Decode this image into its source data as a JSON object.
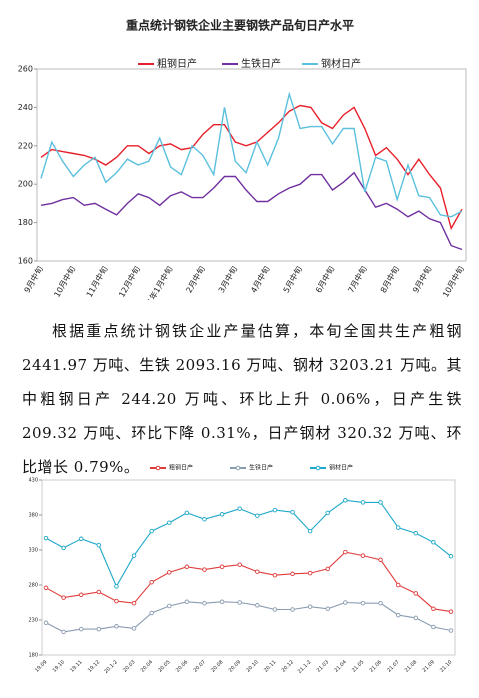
{
  "chart_data": [
    {
      "type": "line",
      "title": "重点统计钢铁企业主要钢铁产品旬日产水平",
      "categories": [
        "9月中旬",
        null,
        null,
        "10月中旬",
        null,
        null,
        "11月中旬",
        null,
        null,
        "12月中旬",
        null,
        null,
        "2021年1月中旬",
        null,
        null,
        "2月中旬",
        null,
        null,
        "3月中旬",
        null,
        null,
        "4月中旬",
        null,
        null,
        "5月中旬",
        null,
        null,
        "6月中旬",
        null,
        null,
        "7月中旬",
        null,
        null,
        "8月中旬",
        null,
        null,
        "9月中旬",
        null,
        null,
        "10月中旬"
      ],
      "series": [
        {
          "name": "粗钢日产",
          "color": "#e8202a",
          "values": [
            214,
            218,
            217,
            216,
            215,
            213,
            210,
            214,
            220,
            220,
            216,
            220,
            221,
            218,
            219,
            226,
            231,
            231,
            222,
            220,
            222,
            227,
            232,
            238,
            241,
            240,
            232,
            229,
            236,
            240,
            229,
            215,
            219,
            213,
            205,
            213,
            205,
            198,
            177,
            187
          ]
        },
        {
          "name": "生铁日产",
          "color": "#7030a0",
          "values": [
            189,
            190,
            192,
            193,
            189,
            190,
            187,
            184,
            190,
            195,
            193,
            189,
            194,
            196,
            193,
            193,
            198,
            204,
            204,
            197,
            191,
            191,
            195,
            198,
            200,
            205,
            205,
            197,
            201,
            206,
            197,
            188,
            190,
            187,
            183,
            186,
            182,
            180,
            168,
            166
          ]
        },
        {
          "name": "钢材日产",
          "color": "#5bc0de",
          "values": [
            203,
            222,
            212,
            204,
            210,
            214,
            201,
            206,
            213,
            210,
            212,
            224,
            209,
            205,
            220,
            215,
            205,
            240,
            212,
            206,
            222,
            210,
            224,
            247,
            229,
            230,
            230,
            221,
            229,
            229,
            196,
            214,
            212,
            192,
            210,
            194,
            193,
            184,
            183,
            186
          ]
        }
      ],
      "ylim": [
        160,
        260
      ],
      "yticks": [
        160,
        180,
        200,
        220,
        240,
        260
      ],
      "grid": false
    },
    {
      "type": "line",
      "categories": [
        "19.09",
        "19.10",
        "19.11",
        "19.12",
        "20.1-2",
        "20.03",
        "20.04",
        "20.05",
        "20.06",
        "20.07",
        "20.08",
        "20.09",
        "20.10",
        "20.11",
        "20.12",
        "21.1-2",
        "21.03",
        "21.04",
        "21.05",
        "21.06",
        "21.07",
        "21.08",
        "21.09",
        "21.10"
      ],
      "series": [
        {
          "name": "粗钢日产",
          "color": "#e03c3c",
          "values": [
            276,
            262,
            266,
            270,
            257,
            254,
            284,
            298,
            306,
            302,
            306,
            309,
            299,
            294,
            296,
            297,
            303,
            327,
            322,
            316,
            280,
            268,
            246,
            242
          ]
        },
        {
          "name": "生铁日产",
          "color": "#8a9bb0",
          "values": [
            226,
            213,
            217,
            217,
            221,
            218,
            240,
            250,
            256,
            254,
            256,
            255,
            251,
            245,
            245,
            249,
            246,
            255,
            254,
            254,
            237,
            233,
            220,
            215
          ]
        },
        {
          "name": "钢材日产",
          "color": "#1fa8c9",
          "values": [
            347,
            333,
            346,
            337,
            278,
            322,
            357,
            369,
            383,
            374,
            381,
            389,
            379,
            387,
            384,
            357,
            383,
            401,
            398,
            398,
            362,
            354,
            341,
            321
          ]
        }
      ],
      "ylim": [
        180,
        430
      ],
      "yticks": [
        180,
        230,
        280,
        330,
        380,
        430
      ],
      "grid": false
    }
  ],
  "document": {
    "paragraph": "根据重点统计钢铁企业产量估算，本旬全国共生产粗钢 2441.97 万吨、生铁 2093.16 万吨、钢材 3203.21 万吨。其中粗钢日产 244.20 万吨、环比上升 0.06%，日产生铁 209.32 万吨、环比下降 0.31%，日产钢材 320.32 万吨、环比增长 0.79%。"
  }
}
